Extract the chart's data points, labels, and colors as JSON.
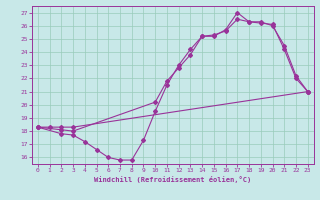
{
  "xlabel": "Windchill (Refroidissement éolien,°C)",
  "xlim": [
    -0.5,
    23.5
  ],
  "ylim": [
    15.5,
    27.5
  ],
  "yticks": [
    16,
    17,
    18,
    19,
    20,
    21,
    22,
    23,
    24,
    25,
    26,
    27
  ],
  "xticks": [
    0,
    1,
    2,
    3,
    4,
    5,
    6,
    7,
    8,
    9,
    10,
    11,
    12,
    13,
    14,
    15,
    16,
    17,
    18,
    19,
    20,
    21,
    22,
    23
  ],
  "bg_color": "#c8e8e8",
  "line_color": "#993399",
  "grid_color": "#99ccbb",
  "line1_x": [
    0,
    1,
    2,
    3,
    23
  ],
  "line1_y": [
    18.3,
    18.3,
    18.3,
    18.3,
    21.0
  ],
  "line2_x": [
    0,
    2,
    3,
    4,
    5,
    6,
    7,
    8,
    9,
    10,
    11,
    12,
    13,
    14,
    15,
    16,
    17,
    18,
    19,
    20,
    21,
    22,
    23
  ],
  "line2_y": [
    18.3,
    17.8,
    17.7,
    17.2,
    16.6,
    16.0,
    15.8,
    15.8,
    17.3,
    19.5,
    21.5,
    23.0,
    24.2,
    25.2,
    25.2,
    25.7,
    27.0,
    26.3,
    26.2,
    26.1,
    24.2,
    22.0,
    21.0
  ],
  "line3_x": [
    0,
    2,
    3,
    10,
    11,
    12,
    13,
    14,
    15,
    16,
    17,
    18,
    19,
    20,
    21,
    22,
    23
  ],
  "line3_y": [
    18.3,
    18.1,
    18.0,
    20.2,
    21.8,
    22.8,
    23.8,
    25.2,
    25.3,
    25.6,
    26.5,
    26.3,
    26.3,
    26.0,
    24.5,
    22.2,
    21.0
  ]
}
